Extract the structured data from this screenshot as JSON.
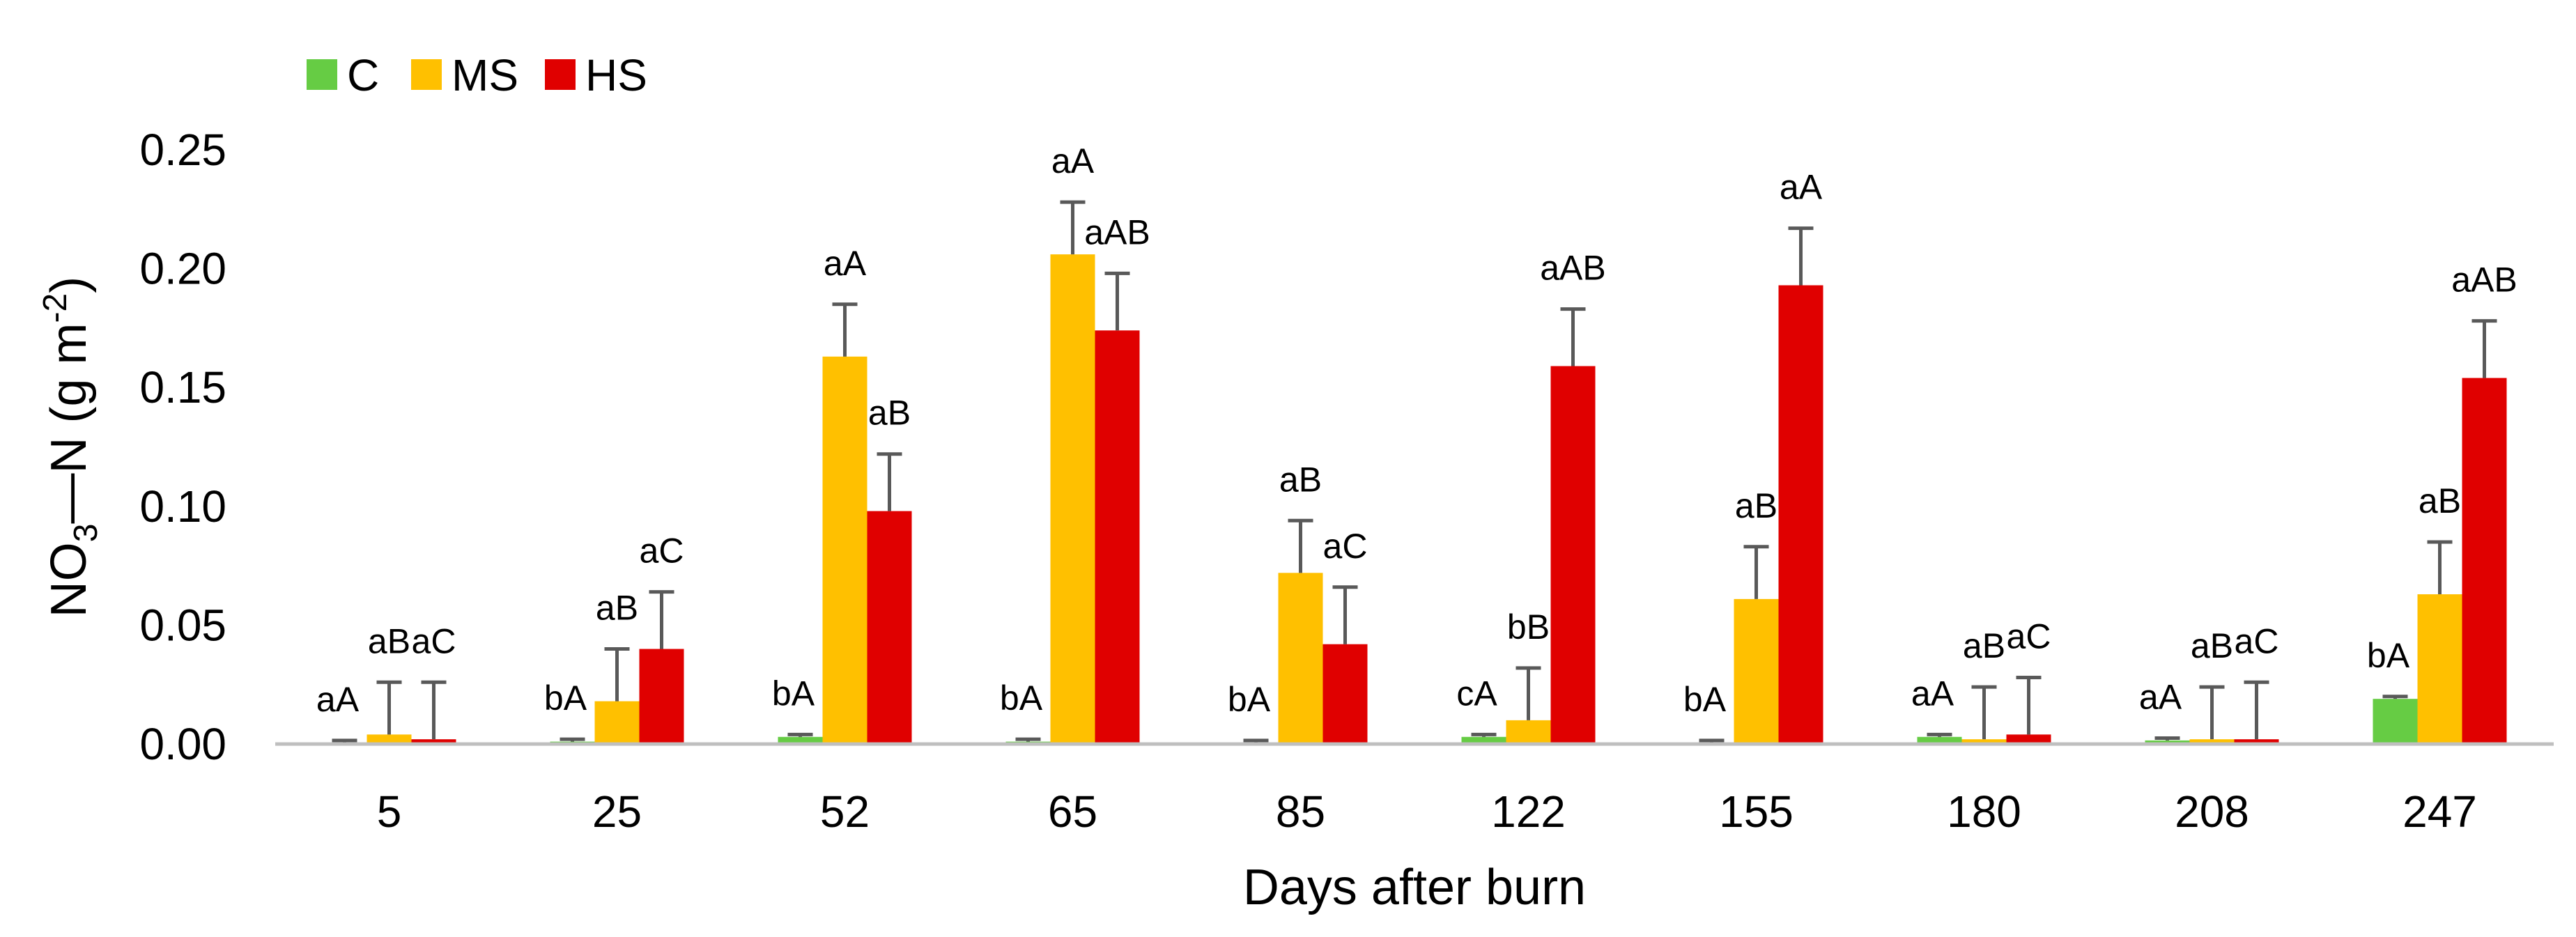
{
  "chart_data": {
    "type": "bar",
    "title": "",
    "xlabel": "Days after burn",
    "ylabel": {
      "prefix": "NO",
      "sub": "3",
      "middle": "—N (g m",
      "sup": "-2",
      "suffix": ")"
    },
    "ylim": [
      0,
      0.25
    ],
    "yticks": [
      "0.00",
      "0.05",
      "0.10",
      "0.15",
      "0.20",
      "0.25"
    ],
    "ytick_values": [
      0,
      0.05,
      0.1,
      0.15,
      0.2,
      0.25
    ],
    "categories": [
      "5",
      "25",
      "52",
      "65",
      "85",
      "122",
      "155",
      "180",
      "208",
      "247"
    ],
    "legend_position": "top-left",
    "series": [
      {
        "name": "C",
        "color": "#66cc44",
        "values": [
          0.0005,
          0.001,
          0.003,
          0.001,
          0.0005,
          0.003,
          0.0005,
          0.003,
          0.0015,
          0.019
        ],
        "error": [
          0.001,
          0.001,
          0.001,
          0.001,
          0.001,
          0.001,
          0.001,
          0.001,
          0.001,
          0.001
        ],
        "labels": [
          "aA",
          "bA",
          "bA",
          "bA",
          "bA",
          "cA",
          "bA",
          "aA",
          "aA",
          "bA"
        ]
      },
      {
        "name": "MS",
        "color": "#ffc000",
        "values": [
          0.004,
          0.018,
          0.163,
          0.206,
          0.072,
          0.01,
          0.061,
          0.002,
          0.002,
          0.063
        ],
        "error": [
          0.022,
          0.022,
          0.022,
          0.022,
          0.022,
          0.022,
          0.022,
          0.022,
          0.022,
          0.022
        ],
        "labels": [
          "aB",
          "aB",
          "aA",
          "aA",
          "aB",
          "bB",
          "aB",
          "aB",
          "aB",
          "aB"
        ]
      },
      {
        "name": "HS",
        "color": "#e00000",
        "values": [
          0.002,
          0.04,
          0.098,
          0.174,
          0.042,
          0.159,
          0.193,
          0.004,
          0.002,
          0.154
        ],
        "error": [
          0.024,
          0.024,
          0.024,
          0.024,
          0.024,
          0.024,
          0.024,
          0.024,
          0.024,
          0.024
        ],
        "labels": [
          "aC",
          "aC",
          "aB",
          "aAB",
          "aC",
          "aAB",
          "aA",
          "aC",
          "aC",
          "aAB"
        ]
      }
    ]
  }
}
